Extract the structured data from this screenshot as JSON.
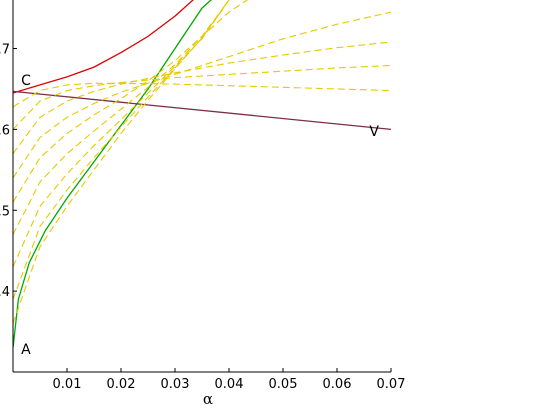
{
  "chart_data": {
    "type": "line",
    "xlabel": "α",
    "xlim": [
      0,
      0.07
    ],
    "ylim": [
      0.3,
      0.76
    ],
    "x_ticks": [
      0.01,
      0.02,
      0.03,
      0.04,
      0.05,
      0.06,
      0.07
    ],
    "x_tick_labels": [
      "0.01",
      "0.02",
      "0.03",
      "0.04",
      "0.05",
      "0.06",
      "0.07"
    ],
    "y_ticks": [
      0.4,
      0.5,
      0.6,
      0.7
    ],
    "y_tick_labels": [
      ".4",
      ".5",
      ".6",
      ".7"
    ],
    "grid": false,
    "annotations": [
      {
        "text": "A",
        "x": 0.0015,
        "y": 0.322
      },
      {
        "text": "C",
        "x": 0.0015,
        "y": 0.655
      },
      {
        "text": "V",
        "x": 0.066,
        "y": 0.592
      }
    ],
    "series": [
      {
        "color": "#00aa00",
        "style": "solid",
        "x": [
          0,
          0.001,
          0.003,
          0.006,
          0.01,
          0.015,
          0.02,
          0.025,
          0.03,
          0.035,
          0.04
        ],
        "y": [
          0.33,
          0.39,
          0.435,
          0.475,
          0.515,
          0.56,
          0.605,
          0.65,
          0.7,
          0.75,
          0.78
        ]
      },
      {
        "color": "#dd0000",
        "style": "solid",
        "x": [
          0,
          0.005,
          0.01,
          0.015,
          0.02,
          0.025,
          0.03,
          0.035,
          0.04
        ],
        "y": [
          0.645,
          0.655,
          0.665,
          0.677,
          0.695,
          0.715,
          0.74,
          0.77,
          0.8
        ]
      },
      {
        "color": "#7a2e4a",
        "style": "solid",
        "x": [
          0,
          0.07
        ],
        "y": [
          0.647,
          0.6
        ]
      },
      {
        "color": "#e8c800",
        "style": "dashed",
        "x": [
          0,
          0.005,
          0.01,
          0.015,
          0.02,
          0.03,
          0.04,
          0.05,
          0.06,
          0.07
        ],
        "y": [
          0.628,
          0.648,
          0.655,
          0.657,
          0.657,
          0.656,
          0.654,
          0.652,
          0.65,
          0.648
        ]
      },
      {
        "color": "#e8c800",
        "style": "dashed",
        "x": [
          0,
          0.005,
          0.01,
          0.015,
          0.02,
          0.03,
          0.04,
          0.05,
          0.06,
          0.07
        ],
        "y": [
          0.6,
          0.635,
          0.648,
          0.654,
          0.658,
          0.664,
          0.668,
          0.672,
          0.676,
          0.679
        ]
      },
      {
        "color": "#e8c800",
        "style": "dashed",
        "x": [
          0,
          0.005,
          0.01,
          0.015,
          0.02,
          0.03,
          0.04,
          0.05,
          0.06,
          0.07
        ],
        "y": [
          0.57,
          0.615,
          0.635,
          0.647,
          0.656,
          0.67,
          0.682,
          0.692,
          0.701,
          0.708
        ]
      },
      {
        "color": "#e8c800",
        "style": "dashed",
        "x": [
          0,
          0.005,
          0.01,
          0.015,
          0.02,
          0.03,
          0.04,
          0.05,
          0.06,
          0.07
        ],
        "y": [
          0.54,
          0.59,
          0.615,
          0.632,
          0.646,
          0.668,
          0.69,
          0.712,
          0.73,
          0.745
        ]
      },
      {
        "color": "#e8c800",
        "style": "dashed",
        "x": [
          0,
          0.005,
          0.01,
          0.015,
          0.02,
          0.025,
          0.03,
          0.035,
          0.04,
          0.05
        ],
        "y": [
          0.51,
          0.565,
          0.595,
          0.618,
          0.638,
          0.66,
          0.685,
          0.715,
          0.745,
          0.79
        ]
      },
      {
        "color": "#e8c800",
        "style": "dashed",
        "x": [
          0,
          0.005,
          0.01,
          0.015,
          0.02,
          0.025,
          0.03,
          0.035,
          0.04
        ],
        "y": [
          0.47,
          0.535,
          0.57,
          0.598,
          0.625,
          0.652,
          0.68,
          0.715,
          0.76
        ]
      },
      {
        "color": "#e8c800",
        "style": "dashed",
        "x": [
          0,
          0.005,
          0.01,
          0.015,
          0.02,
          0.025,
          0.03,
          0.035,
          0.04
        ],
        "y": [
          0.43,
          0.505,
          0.545,
          0.58,
          0.612,
          0.645,
          0.678,
          0.712,
          0.76
        ]
      },
      {
        "color": "#e8c800",
        "style": "dashed",
        "x": [
          0,
          0.005,
          0.01,
          0.015,
          0.02,
          0.025,
          0.03,
          0.035,
          0.04
        ],
        "y": [
          0.39,
          0.48,
          0.525,
          0.565,
          0.603,
          0.64,
          0.676,
          0.713,
          0.76
        ]
      },
      {
        "color": "#e8c800",
        "style": "dashed",
        "x": [
          0,
          0.005,
          0.01,
          0.015,
          0.02,
          0.025,
          0.03,
          0.035,
          0.04
        ],
        "y": [
          0.36,
          0.455,
          0.505,
          0.55,
          0.595,
          0.636,
          0.675,
          0.713,
          0.76
        ]
      }
    ]
  }
}
